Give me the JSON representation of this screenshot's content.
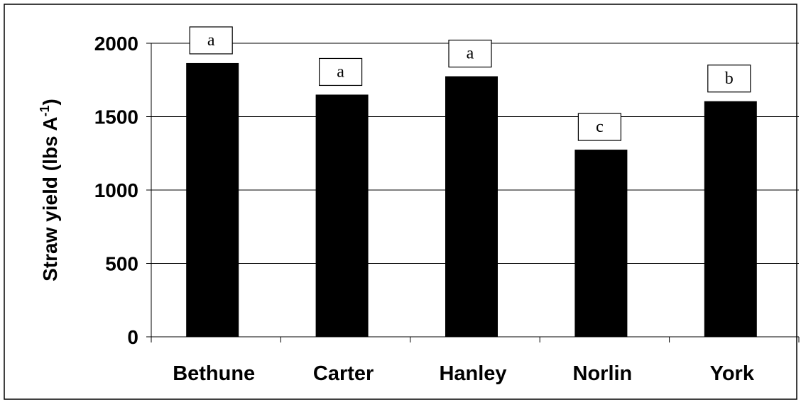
{
  "chart_data": {
    "type": "bar",
    "categories": [
      "Bethune",
      "Carter",
      "Hanley",
      "Norlin",
      "York"
    ],
    "values": [
      1865,
      1650,
      1775,
      1275,
      1605
    ],
    "significance_letters": [
      "a",
      "a",
      "a",
      "c",
      "b"
    ],
    "ylabel": "Straw yield (lbs A",
    "ylabel_superscript": "-1",
    "ylabel_suffix": ")",
    "ylim": [
      0,
      2000
    ],
    "yticks": [
      0,
      500,
      1000,
      1500,
      2000
    ],
    "ytick_labels": [
      "0",
      "500",
      "1000",
      "1500",
      "2000"
    ],
    "grid": true,
    "legend": "none",
    "colors": {
      "bar": "#000000",
      "grid": "#000000",
      "background": "#ffffff"
    }
  }
}
